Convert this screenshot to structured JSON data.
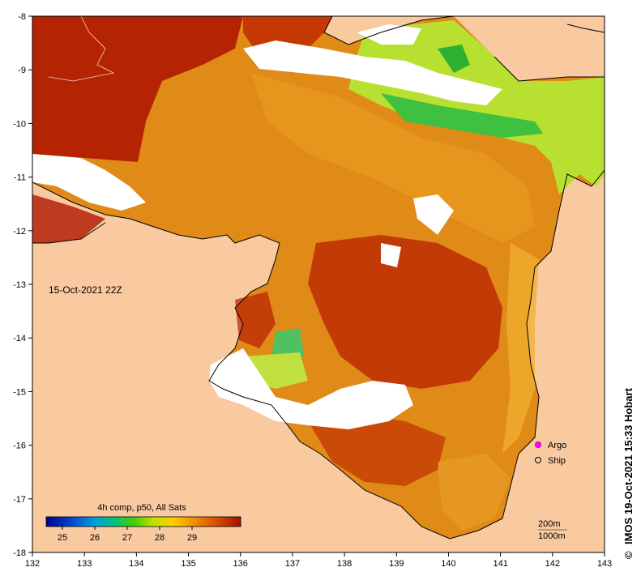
{
  "map": {
    "timestamp_label": "15-Oct-2021 22Z",
    "credit": "IMOS 19-Oct-2021 15:33 Hobart",
    "credit_symbol": "©",
    "x_axis": {
      "ticks": [
        "132",
        "133",
        "134",
        "135",
        "136",
        "137",
        "138",
        "139",
        "140",
        "141",
        "142",
        "143"
      ]
    },
    "y_axis": {
      "ticks": [
        "-8",
        "-9",
        "-10",
        "-11",
        "-12",
        "-13",
        "-14",
        "-15",
        "-16",
        "-17",
        "-18"
      ]
    },
    "extent": {
      "lon": [
        132,
        143
      ],
      "lat": [
        -18,
        -8
      ]
    }
  },
  "colorbar": {
    "title": "4h comp, p50, All Sats",
    "tick_labels": [
      "25",
      "26",
      "27",
      "28",
      "29"
    ],
    "colors": [
      "#00008c",
      "#0040c8",
      "#00a0e0",
      "#00c080",
      "#40d000",
      "#c0e000",
      "#ffd000",
      "#f08000",
      "#d04000",
      "#a01000"
    ]
  },
  "legend": {
    "items": [
      {
        "label": "Argo",
        "symbol": "magenta-circle"
      },
      {
        "label": "Ship",
        "symbol": "black-open-circle"
      }
    ]
  },
  "scale_note": {
    "line1": "200m",
    "line2": "1000m"
  },
  "colors": {
    "land": "#f9c9a0",
    "no_data": "#ffffff",
    "sst_hot": "#a81000",
    "sst_warm": "#d45000",
    "sst_mid": "#e88a10",
    "sst_cool": "#f0b020",
    "sst_green": "#40c040",
    "sst_yellowgreen": "#b8e030"
  }
}
